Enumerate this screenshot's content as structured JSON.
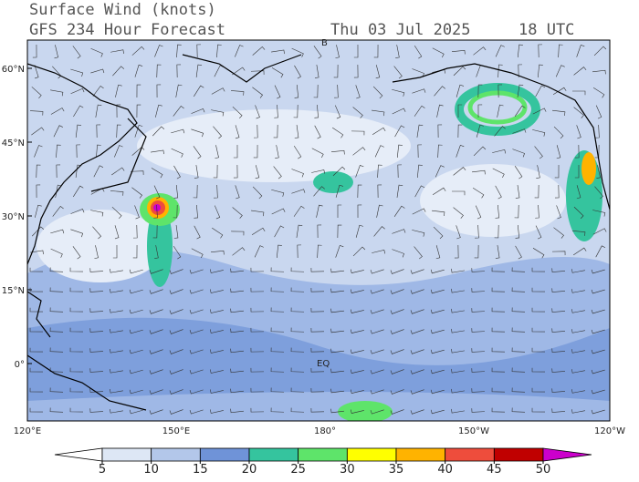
{
  "header": {
    "title": "Surface Wind (knots)",
    "subtitle": "GFS 234 Hour Forecast",
    "date": "Thu 03 Jul 2025",
    "time": "18 UTC"
  },
  "map": {
    "lat_labels": [
      "60°N",
      "45°N",
      "30°N",
      "15°N",
      "0°"
    ],
    "lon_labels": [
      "120°E",
      "150°E",
      "180°",
      "150°W",
      "120°W"
    ],
    "annotations": [
      "EQ",
      "B"
    ]
  },
  "colorbar": {
    "ticks": [
      5,
      10,
      15,
      20,
      25,
      30,
      35,
      40,
      45,
      50
    ],
    "colors": [
      "#ffffff",
      "#dde7f5",
      "#b3c7ea",
      "#6f93d8",
      "#35c49e",
      "#5ee46a",
      "#ffff00",
      "#ffb300",
      "#ee4d3c",
      "#c00000",
      "#cc00cc"
    ]
  }
}
